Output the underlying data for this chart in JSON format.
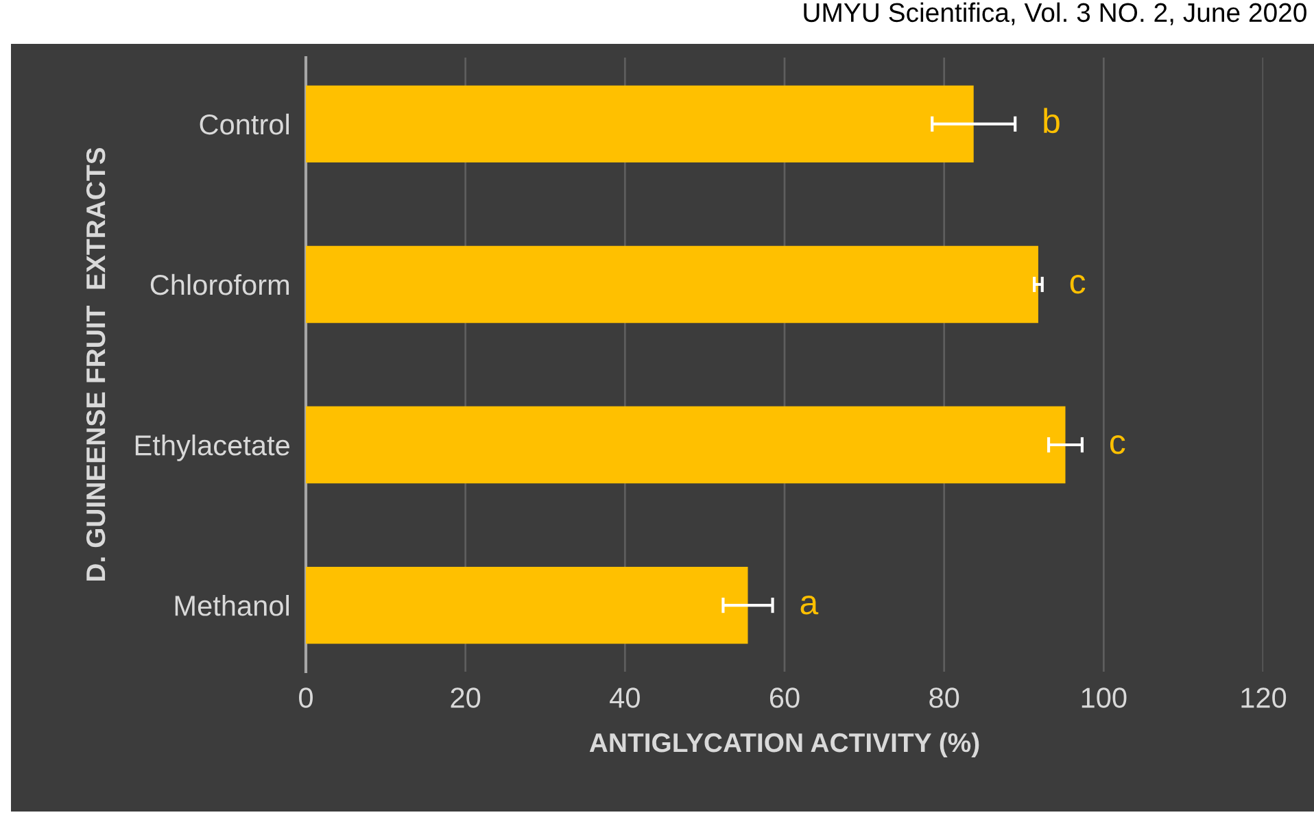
{
  "chart_data": {
    "type": "bar",
    "orientation": "horizontal",
    "categories": [
      "Control",
      "Chloroform",
      "Ethylacetate",
      "Methanol"
    ],
    "values": [
      83.7,
      91.8,
      95.2,
      55.4
    ],
    "errors": [
      5.2,
      0.5,
      2.1,
      3.1
    ],
    "color": "#ffc000",
    "xlabel": "ANTIGLYCATION ACTIVITY (%)",
    "ylabel": "D. GUINEENSE FRUIT  EXTRACTS",
    "xlim": [
      0,
      120
    ],
    "xticks": [
      0,
      20,
      40,
      60,
      80,
      100,
      120
    ],
    "grid": "x",
    "legend": false,
    "value_labels": [
      "b",
      "c",
      "c",
      "a"
    ],
    "annotations": [
      "UMYU Scientifica, Vol. 3 NO. 2, June 2020"
    ]
  }
}
